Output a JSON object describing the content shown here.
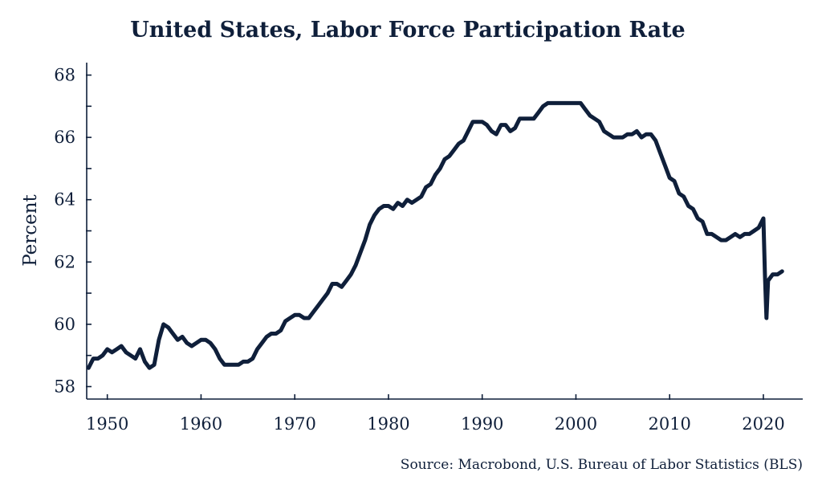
{
  "colors": {
    "line": "#0f1f3a",
    "axis": "#0f1f3a",
    "text": "#0f1f3a",
    "background": "#ffffff"
  },
  "chart_data": {
    "type": "line",
    "title": "United States, Labor Force Participation Rate",
    "xlabel": "",
    "ylabel": "Percent",
    "source": "Source: Macrobond, U.S. Bureau of Labor Statistics (BLS)",
    "xlim": [
      1947.8,
      2024.2
    ],
    "ylim": [
      57.6,
      68.4
    ],
    "x_ticks": [
      1950,
      1960,
      1970,
      1980,
      1990,
      2000,
      2010,
      2020
    ],
    "x_tick_labels": [
      "1950",
      "1960",
      "1970",
      "1980",
      "1990",
      "2000",
      "2010",
      "2020"
    ],
    "y_ticks": [
      58,
      60,
      62,
      64,
      66,
      68
    ],
    "y_tick_labels": [
      "58",
      "60",
      "62",
      "64",
      "66",
      "68"
    ],
    "y_minor_ticks": [
      59,
      61,
      63,
      65,
      67
    ],
    "grid": false,
    "legend": "none",
    "series": [
      {
        "x": [
          1948.0,
          1948.5,
          1949.0,
          1949.5,
          1950.0,
          1950.5,
          1951.0,
          1951.5,
          1952.0,
          1952.5,
          1953.0,
          1953.5,
          1954.0,
          1954.5,
          1955.0,
          1955.5,
          1956.0,
          1956.5,
          1957.0,
          1957.5,
          1958.0,
          1958.5,
          1959.0,
          1959.5,
          1960.0,
          1960.5,
          1961.0,
          1961.5,
          1962.0,
          1962.5,
          1963.0,
          1963.5,
          1964.0,
          1964.5,
          1965.0,
          1965.5,
          1966.0,
          1966.5,
          1967.0,
          1967.5,
          1968.0,
          1968.5,
          1969.0,
          1969.5,
          1970.0,
          1970.5,
          1971.0,
          1971.5,
          1972.0,
          1972.5,
          1973.0,
          1973.5,
          1974.0,
          1974.5,
          1975.0,
          1975.5,
          1976.0,
          1976.5,
          1977.0,
          1977.5,
          1978.0,
          1978.5,
          1979.0,
          1979.5,
          1980.0,
          1980.5,
          1981.0,
          1981.5,
          1982.0,
          1982.5,
          1983.0,
          1983.5,
          1984.0,
          1984.5,
          1985.0,
          1985.5,
          1986.0,
          1986.5,
          1987.0,
          1987.5,
          1988.0,
          1988.5,
          1989.0,
          1989.5,
          1990.0,
          1990.5,
          1991.0,
          1991.5,
          1992.0,
          1992.5,
          1993.0,
          1993.5,
          1994.0,
          1994.5,
          1995.0,
          1995.5,
          1996.0,
          1996.5,
          1997.0,
          1997.5,
          1998.0,
          1998.5,
          1999.0,
          1999.5,
          2000.0,
          2000.5,
          2001.0,
          2001.5,
          2002.0,
          2002.5,
          2003.0,
          2003.5,
          2004.0,
          2004.5,
          2005.0,
          2005.5,
          2006.0,
          2006.5,
          2007.0,
          2007.5,
          2008.0,
          2008.5,
          2009.0,
          2009.5,
          2010.0,
          2010.5,
          2011.0,
          2011.5,
          2012.0,
          2012.5,
          2013.0,
          2013.5,
          2014.0,
          2014.5,
          2015.0,
          2015.5,
          2016.0,
          2016.5,
          2017.0,
          2017.5,
          2018.0,
          2018.5,
          2019.0,
          2019.5,
          2020.0,
          2020.17,
          2020.33,
          2020.5,
          2021.0,
          2021.5,
          2022.0
        ],
        "values": [
          58.6,
          58.9,
          58.9,
          59.0,
          59.2,
          59.1,
          59.2,
          59.3,
          59.1,
          59.0,
          58.9,
          59.2,
          58.8,
          58.6,
          58.7,
          59.5,
          60.0,
          59.9,
          59.7,
          59.5,
          59.6,
          59.4,
          59.3,
          59.4,
          59.5,
          59.5,
          59.4,
          59.2,
          58.9,
          58.7,
          58.7,
          58.7,
          58.7,
          58.8,
          58.8,
          58.9,
          59.2,
          59.4,
          59.6,
          59.7,
          59.7,
          59.8,
          60.1,
          60.2,
          60.3,
          60.3,
          60.2,
          60.2,
          60.4,
          60.6,
          60.8,
          61.0,
          61.3,
          61.3,
          61.2,
          61.4,
          61.6,
          61.9,
          62.3,
          62.7,
          63.2,
          63.5,
          63.7,
          63.8,
          63.8,
          63.7,
          63.9,
          63.8,
          64.0,
          63.9,
          64.0,
          64.1,
          64.4,
          64.5,
          64.8,
          65.0,
          65.3,
          65.4,
          65.6,
          65.8,
          65.9,
          66.2,
          66.5,
          66.5,
          66.5,
          66.4,
          66.2,
          66.1,
          66.4,
          66.4,
          66.2,
          66.3,
          66.6,
          66.6,
          66.6,
          66.6,
          66.8,
          67.0,
          67.1,
          67.1,
          67.1,
          67.1,
          67.1,
          67.1,
          67.1,
          67.1,
          66.9,
          66.7,
          66.6,
          66.5,
          66.2,
          66.1,
          66.0,
          66.0,
          66.0,
          66.1,
          66.1,
          66.2,
          66.0,
          66.1,
          66.1,
          65.9,
          65.5,
          65.1,
          64.7,
          64.6,
          64.2,
          64.1,
          63.8,
          63.7,
          63.4,
          63.3,
          62.9,
          62.9,
          62.8,
          62.7,
          62.7,
          62.8,
          62.9,
          62.8,
          62.9,
          62.9,
          63.0,
          63.1,
          63.4,
          61.6,
          60.2,
          61.4,
          61.6,
          61.6,
          61.7
        ]
      }
    ]
  }
}
